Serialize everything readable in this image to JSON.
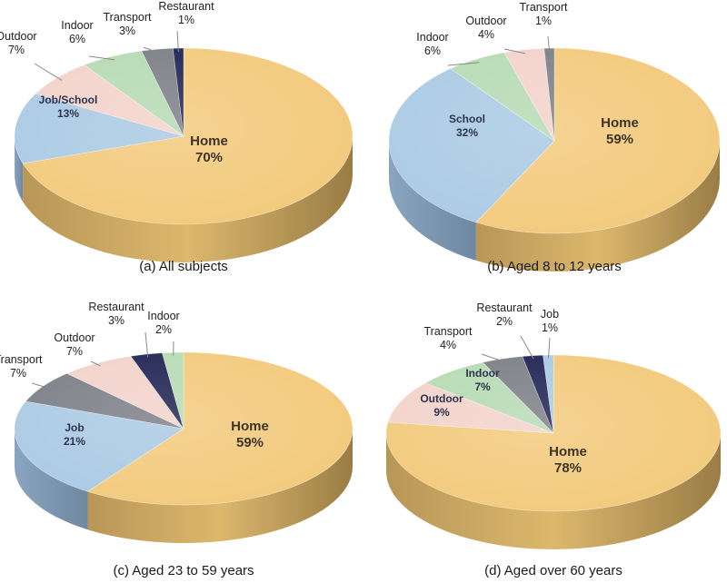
{
  "colors": {
    "Home": "#f2c97a",
    "Job/School": "#a9c9e3",
    "School": "#a9c9e3",
    "Job": "#a9c9e3",
    "Outdoor": "#f2d2ca",
    "Indoor": "#b5dab2",
    "Transport": "#7b7d85",
    "Restaurant": "#1c2150"
  },
  "chart_data": [
    {
      "type": "pie",
      "title": "(a) All subjects",
      "slices": [
        {
          "label": "Home",
          "value": 70,
          "text": "70%"
        },
        {
          "label": "Job/School",
          "value": 13,
          "text": "13%"
        },
        {
          "label": "Outdoor",
          "value": 7,
          "text": "7%"
        },
        {
          "label": "Indoor",
          "value": 6,
          "text": "6%"
        },
        {
          "label": "Transport",
          "value": 3,
          "text": "3%"
        },
        {
          "label": "Restaurant",
          "value": 1,
          "text": "1%"
        }
      ]
    },
    {
      "type": "pie",
      "title": "(b) Aged 8 to 12 years",
      "slices": [
        {
          "label": "Home",
          "value": 59,
          "text": "59%"
        },
        {
          "label": "School",
          "value": 32,
          "text": "32%"
        },
        {
          "label": "Indoor",
          "value": 6,
          "text": "6%"
        },
        {
          "label": "Outdoor",
          "value": 4,
          "text": "4%"
        },
        {
          "label": "Transport",
          "value": 1,
          "text": "1%"
        }
      ]
    },
    {
      "type": "pie",
      "title": "(c) Aged 23 to 59 years",
      "slices": [
        {
          "label": "Home",
          "value": 59,
          "text": "59%"
        },
        {
          "label": "Job",
          "value": 21,
          "text": "21%"
        },
        {
          "label": "Transport",
          "value": 7,
          "text": "7%"
        },
        {
          "label": "Outdoor",
          "value": 7,
          "text": "7%"
        },
        {
          "label": "Restaurant",
          "value": 3,
          "text": "3%"
        },
        {
          "label": "Indoor",
          "value": 2,
          "text": "2%"
        }
      ]
    },
    {
      "type": "pie",
      "title": "(d) Aged over 60 years",
      "slices": [
        {
          "label": "Home",
          "value": 78,
          "text": "78%"
        },
        {
          "label": "Outdoor",
          "value": 9,
          "text": "9%"
        },
        {
          "label": "Indoor",
          "value": 7,
          "text": "7%"
        },
        {
          "label": "Transport",
          "value": 4,
          "text": "4%"
        },
        {
          "label": "Restaurant",
          "value": 2,
          "text": "2%"
        },
        {
          "label": "Job",
          "value": 1,
          "text": "1%"
        }
      ]
    }
  ]
}
